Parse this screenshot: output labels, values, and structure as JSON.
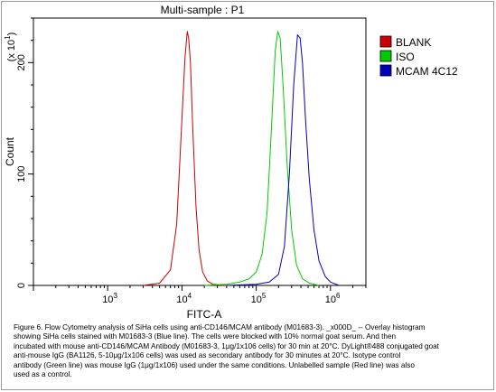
{
  "chart_data": {
    "type": "line",
    "title": "Multi-sample : P1",
    "xlabel": "FITC-A",
    "ylabel": "Count",
    "y_multiplier_label": "(x 10",
    "y_multiplier_exp": "1",
    "xscale": "log",
    "xlim": [
      100,
      3000000
    ],
    "ylim": [
      0,
      240
    ],
    "x_tick_labels": [
      {
        "value": 1000,
        "base": "10",
        "exp": "3"
      },
      {
        "value": 10000,
        "base": "10",
        "exp": "4"
      },
      {
        "value": 100000,
        "base": "10",
        "exp": "5"
      },
      {
        "value": 1000000,
        "base": "10",
        "exp": "6"
      }
    ],
    "y_ticks": [
      0,
      100,
      200
    ],
    "legend_position": "top-right",
    "series": [
      {
        "name": "BLANK",
        "color": "#cc0000",
        "x": [
          3000,
          5000,
          7000,
          8500,
          10000,
          11000,
          11800,
          12300,
          13000,
          14000,
          15500,
          17000,
          19000,
          22000,
          26000,
          32000,
          40000
        ],
        "y": [
          0,
          2,
          14,
          55,
          150,
          205,
          228,
          222,
          200,
          140,
          70,
          32,
          12,
          4,
          1,
          0.5,
          0
        ]
      },
      {
        "name": "ISO",
        "color": "#00cc00",
        "x": [
          20000,
          40000,
          60000,
          80000,
          100000,
          120000,
          140000,
          160000,
          180000,
          195000,
          210000,
          230000,
          260000,
          300000,
          350000,
          420000,
          520000,
          700000
        ],
        "y": [
          0,
          1,
          3,
          6,
          12,
          28,
          65,
          140,
          210,
          228,
          222,
          180,
          110,
          50,
          18,
          6,
          2,
          0
        ]
      },
      {
        "name": "MCAM 4C12",
        "color": "#0000bb",
        "x": [
          40000,
          100000,
          150000,
          200000,
          240000,
          280000,
          320000,
          360000,
          390000,
          420000,
          460000,
          520000,
          600000,
          700000,
          850000,
          1000000,
          1300000
        ],
        "y": [
          0,
          1,
          3,
          10,
          35,
          100,
          180,
          225,
          222,
          200,
          150,
          95,
          50,
          22,
          8,
          3,
          0
        ]
      }
    ]
  },
  "caption_lines": [
    "Figure 6. Flow Cytometry analysis of SiHa cells using anti-CD146/MCAM antibody (M01683-3). _x000D_ -- Overlay histogram",
    "showing SiHa cells stained with M01683-3 (Blue line). The cells were blocked with 10% normal goat serum. And then",
    "incubated with mouse anti-CD146/MCAM Antibody (M01683-3, 1μg/1x106 cells) for 30 min at 20°C. DyLight®488 conjugated goat",
    "anti-mouse IgG (BA1126, 5-10μg/1x106 cells) was used as secondary antibody for 30 minutes at 20°C. Isotype control",
    "antibody (Green line) was mouse IgG (1μg/1x106) used under the same conditions. Unlabelled sample (Red line) was also",
    "used as a control."
  ]
}
